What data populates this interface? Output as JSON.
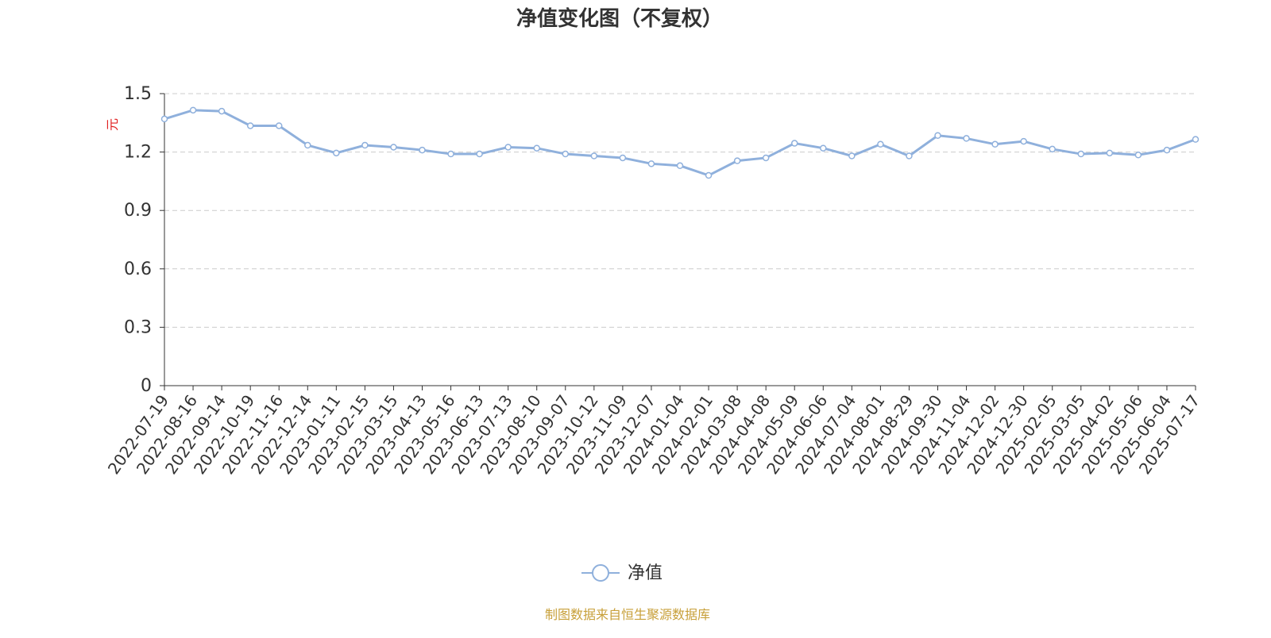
{
  "chart_data": {
    "type": "line",
    "title": "净值变化图（不复权）",
    "y_label": "元",
    "categories": [
      "2022-07-19",
      "2022-08-16",
      "2022-09-14",
      "2022-10-19",
      "2022-11-16",
      "2022-12-14",
      "2023-01-11",
      "2023-02-15",
      "2023-03-15",
      "2023-04-13",
      "2023-05-16",
      "2023-06-13",
      "2023-07-13",
      "2023-08-10",
      "2023-09-07",
      "2023-10-12",
      "2023-11-09",
      "2023-12-07",
      "2024-01-04",
      "2024-02-01",
      "2024-03-08",
      "2024-04-08",
      "2024-05-09",
      "2024-06-06",
      "2024-07-04",
      "2024-08-01",
      "2024-08-29",
      "2024-09-30",
      "2024-11-04",
      "2024-12-02",
      "2024-12-30",
      "2025-02-05",
      "2025-03-05",
      "2025-04-02",
      "2025-05-06",
      "2025-06-04",
      "2025-07-17"
    ],
    "series": [
      {
        "name": "净值",
        "color": "#8fb0dc",
        "values": [
          1.37,
          1.415,
          1.41,
          1.335,
          1.335,
          1.235,
          1.195,
          1.235,
          1.225,
          1.21,
          1.19,
          1.19,
          1.225,
          1.22,
          1.19,
          1.18,
          1.17,
          1.14,
          1.13,
          1.08,
          1.155,
          1.17,
          1.245,
          1.22,
          1.18,
          1.24,
          1.18,
          1.285,
          1.27,
          1.24,
          1.255,
          1.215,
          1.19,
          1.195,
          1.185,
          1.21,
          1.265
        ]
      }
    ],
    "ylim": [
      0,
      1.5
    ],
    "yticks": [
      0,
      0.3,
      0.6,
      0.9,
      1.2,
      1.5
    ],
    "grid": true,
    "source": "制图数据来自恒生聚源数据库"
  }
}
